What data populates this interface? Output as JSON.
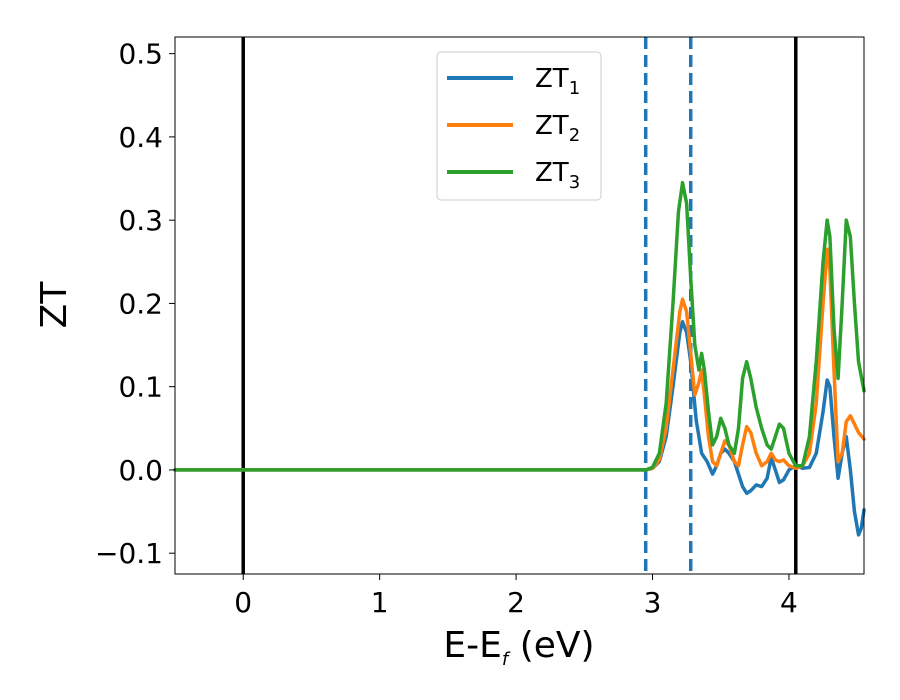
{
  "chart_data": {
    "type": "line",
    "xlabel_main": "E-E",
    "xlabel_sub": "f",
    "xlabel_unit": " (eV)",
    "ylabel": "ZT",
    "xlim": [
      -0.5,
      4.55
    ],
    "ylim": [
      -0.125,
      0.52
    ],
    "xticks": [
      {
        "value": 0,
        "label": "0"
      },
      {
        "value": 1,
        "label": "1"
      },
      {
        "value": 2,
        "label": "2"
      },
      {
        "value": 3,
        "label": "3"
      },
      {
        "value": 4,
        "label": "4"
      }
    ],
    "yticks": [
      {
        "value": -0.1,
        "label": "−0.1"
      },
      {
        "value": 0.0,
        "label": "0.0"
      },
      {
        "value": 0.1,
        "label": "0.1"
      },
      {
        "value": 0.2,
        "label": "0.2"
      },
      {
        "value": 0.3,
        "label": "0.3"
      },
      {
        "value": 0.4,
        "label": "0.4"
      },
      {
        "value": 0.5,
        "label": "0.5"
      }
    ],
    "grid": false,
    "legend_position": "top-center",
    "vertical_lines": [
      {
        "x": 0.0,
        "style": "solid",
        "color": "#000000"
      },
      {
        "x": 4.05,
        "style": "solid",
        "color": "#000000"
      },
      {
        "x": 2.95,
        "style": "dashed",
        "color": "#1f77b4"
      },
      {
        "x": 3.28,
        "style": "dashed",
        "color": "#1f77b4"
      }
    ],
    "series": [
      {
        "name": "ZT",
        "subscript": "1",
        "color": "#1f77b4",
        "points": [
          [
            -0.5,
            0
          ],
          [
            2.95,
            0
          ],
          [
            3.0,
            0.002
          ],
          [
            3.05,
            0.01
          ],
          [
            3.1,
            0.04
          ],
          [
            3.15,
            0.1
          ],
          [
            3.2,
            0.165
          ],
          [
            3.22,
            0.178
          ],
          [
            3.25,
            0.165
          ],
          [
            3.28,
            0.13
          ],
          [
            3.32,
            0.06
          ],
          [
            3.36,
            0.02
          ],
          [
            3.4,
            0.01
          ],
          [
            3.44,
            -0.005
          ],
          [
            3.47,
            0.005
          ],
          [
            3.5,
            0.02
          ],
          [
            3.53,
            0.025
          ],
          [
            3.56,
            0.02
          ],
          [
            3.6,
            0.01
          ],
          [
            3.63,
            -0.005
          ],
          [
            3.66,
            -0.02
          ],
          [
            3.69,
            -0.028
          ],
          [
            3.72,
            -0.025
          ],
          [
            3.76,
            -0.018
          ],
          [
            3.8,
            -0.02
          ],
          [
            3.84,
            -0.01
          ],
          [
            3.87,
            0.015
          ],
          [
            3.9,
            0.0
          ],
          [
            3.93,
            -0.015
          ],
          [
            3.96,
            -0.012
          ],
          [
            4.0,
            0.0
          ],
          [
            4.05,
            0.005
          ],
          [
            4.1,
            0.002
          ],
          [
            4.15,
            0.003
          ],
          [
            4.2,
            0.02
          ],
          [
            4.25,
            0.07
          ],
          [
            4.28,
            0.108
          ],
          [
            4.3,
            0.1
          ],
          [
            4.33,
            0.04
          ],
          [
            4.36,
            -0.01
          ],
          [
            4.39,
            0.02
          ],
          [
            4.42,
            0.04
          ],
          [
            4.45,
            0.0
          ],
          [
            4.48,
            -0.05
          ],
          [
            4.51,
            -0.078
          ],
          [
            4.53,
            -0.07
          ],
          [
            4.55,
            -0.048
          ]
        ]
      },
      {
        "name": "ZT",
        "subscript": "2",
        "color": "#ff7f0e",
        "points": [
          [
            -0.5,
            0
          ],
          [
            2.95,
            0
          ],
          [
            3.0,
            0.002
          ],
          [
            3.05,
            0.012
          ],
          [
            3.1,
            0.05
          ],
          [
            3.15,
            0.12
          ],
          [
            3.2,
            0.19
          ],
          [
            3.22,
            0.205
          ],
          [
            3.25,
            0.19
          ],
          [
            3.28,
            0.14
          ],
          [
            3.31,
            0.09
          ],
          [
            3.34,
            0.105
          ],
          [
            3.36,
            0.12
          ],
          [
            3.38,
            0.09
          ],
          [
            3.41,
            0.04
          ],
          [
            3.44,
            0.01
          ],
          [
            3.47,
            0.005
          ],
          [
            3.5,
            0.02
          ],
          [
            3.53,
            0.035
          ],
          [
            3.56,
            0.03
          ],
          [
            3.6,
            0.01
          ],
          [
            3.63,
            0.005
          ],
          [
            3.66,
            0.03
          ],
          [
            3.69,
            0.052
          ],
          [
            3.72,
            0.045
          ],
          [
            3.76,
            0.02
          ],
          [
            3.8,
            0.005
          ],
          [
            3.84,
            0.01
          ],
          [
            3.87,
            0.02
          ],
          [
            3.9,
            0.012
          ],
          [
            3.93,
            0.01
          ],
          [
            3.96,
            0.012
          ],
          [
            4.0,
            0.005
          ],
          [
            4.05,
            0.002
          ],
          [
            4.1,
            0.005
          ],
          [
            4.15,
            0.02
          ],
          [
            4.2,
            0.08
          ],
          [
            4.25,
            0.2
          ],
          [
            4.28,
            0.265
          ],
          [
            4.3,
            0.24
          ],
          [
            4.33,
            0.12
          ],
          [
            4.36,
            0.01
          ],
          [
            4.39,
            0.02
          ],
          [
            4.42,
            0.058
          ],
          [
            4.45,
            0.065
          ],
          [
            4.48,
            0.055
          ],
          [
            4.51,
            0.045
          ],
          [
            4.55,
            0.037
          ]
        ]
      },
      {
        "name": "ZT",
        "subscript": "3",
        "color": "#2ca02c",
        "points": [
          [
            -0.5,
            0
          ],
          [
            2.95,
            0
          ],
          [
            3.0,
            0.003
          ],
          [
            3.05,
            0.02
          ],
          [
            3.1,
            0.08
          ],
          [
            3.15,
            0.2
          ],
          [
            3.19,
            0.31
          ],
          [
            3.22,
            0.345
          ],
          [
            3.25,
            0.32
          ],
          [
            3.28,
            0.23
          ],
          [
            3.31,
            0.15
          ],
          [
            3.34,
            0.12
          ],
          [
            3.36,
            0.14
          ],
          [
            3.38,
            0.12
          ],
          [
            3.41,
            0.07
          ],
          [
            3.44,
            0.03
          ],
          [
            3.47,
            0.04
          ],
          [
            3.5,
            0.062
          ],
          [
            3.53,
            0.05
          ],
          [
            3.56,
            0.03
          ],
          [
            3.6,
            0.02
          ],
          [
            3.63,
            0.05
          ],
          [
            3.66,
            0.11
          ],
          [
            3.69,
            0.13
          ],
          [
            3.72,
            0.11
          ],
          [
            3.76,
            0.075
          ],
          [
            3.8,
            0.05
          ],
          [
            3.84,
            0.03
          ],
          [
            3.87,
            0.025
          ],
          [
            3.9,
            0.04
          ],
          [
            3.93,
            0.055
          ],
          [
            3.96,
            0.05
          ],
          [
            4.0,
            0.02
          ],
          [
            4.05,
            0.005
          ],
          [
            4.1,
            0.005
          ],
          [
            4.15,
            0.04
          ],
          [
            4.2,
            0.13
          ],
          [
            4.25,
            0.25
          ],
          [
            4.28,
            0.3
          ],
          [
            4.3,
            0.28
          ],
          [
            4.33,
            0.17
          ],
          [
            4.36,
            0.11
          ],
          [
            4.39,
            0.2
          ],
          [
            4.42,
            0.3
          ],
          [
            4.45,
            0.28
          ],
          [
            4.48,
            0.2
          ],
          [
            4.51,
            0.13
          ],
          [
            4.55,
            0.095
          ]
        ]
      }
    ]
  }
}
